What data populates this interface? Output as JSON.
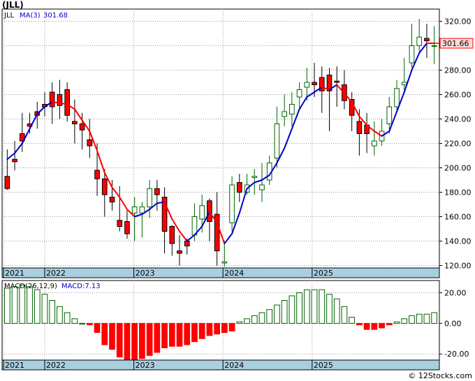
{
  "ticker_label": "(JLL)",
  "footer": "© 12Stocks.com",
  "colors": {
    "up": "#006400",
    "down": "#ff0000",
    "ma_rising": "#0000cc",
    "ma_falling": "#ff0000",
    "axis_band": "#a8cfe0",
    "grid": "#999999"
  },
  "chart_data": [
    {
      "type": "candlestick",
      "title": "",
      "legend": [
        "JLL",
        "MA(3)",
        "301.68"
      ],
      "last_price_label": "301.66",
      "ylim": [
        118,
        330
      ],
      "yticks": [
        120,
        140,
        160,
        180,
        200,
        220,
        240,
        260,
        280,
        "300.00",
        320
      ],
      "ytick_labels": [
        "120.00",
        "140.00",
        "160.00",
        "180.00",
        "200.00",
        "220.00",
        "240.00",
        "260.00",
        "280.00",
        "300.00",
        "320.00"
      ],
      "x_labels": [
        "2021",
        "2022",
        "2023",
        "2024",
        "2025"
      ],
      "x_label_positions": [
        0,
        5.5,
        17.4,
        29.3,
        41.2
      ],
      "candles": [
        [
          193,
          183,
          215,
          182
        ],
        [
          207,
          205,
          222,
          198
        ],
        [
          228,
          222,
          245,
          213
        ],
        [
          236,
          234,
          245,
          228
        ],
        [
          246,
          243,
          254,
          232
        ],
        [
          252,
          250,
          262,
          242
        ],
        [
          262,
          250,
          270,
          236
        ],
        [
          260,
          251,
          272,
          240
        ],
        [
          264,
          243,
          270,
          238
        ],
        [
          238,
          236,
          256,
          220
        ],
        [
          236,
          231,
          245,
          215
        ],
        [
          223,
          218,
          240,
          208
        ],
        [
          198,
          191,
          220,
          177
        ],
        [
          191,
          178,
          199,
          160
        ],
        [
          176,
          172,
          190,
          165
        ],
        [
          157,
          152,
          185,
          148
        ],
        [
          156,
          146,
          165,
          142
        ],
        [
          163,
          168,
          176,
          140
        ],
        [
          163,
          168,
          172,
          143
        ],
        [
          168,
          183,
          190,
          159
        ],
        [
          183,
          178,
          190,
          165
        ],
        [
          176,
          148,
          184,
          130
        ],
        [
          152,
          138,
          153,
          128
        ],
        [
          132,
          130,
          145,
          120
        ],
        [
          140,
          136,
          142,
          129
        ],
        [
          145,
          160,
          171,
          140
        ],
        [
          158,
          169,
          178,
          147
        ],
        [
          173,
          156,
          175,
          140
        ],
        [
          162,
          132,
          180,
          120
        ],
        [
          122,
          123,
          140,
          119
        ],
        [
          155,
          186,
          193,
          148
        ],
        [
          188,
          180,
          195,
          172
        ],
        [
          180,
          186,
          195,
          178
        ],
        [
          192,
          193,
          199,
          178
        ],
        [
          182,
          186,
          204,
          172
        ],
        [
          190,
          204,
          210,
          186
        ],
        [
          208,
          236,
          250,
          200
        ],
        [
          242,
          246,
          260,
          234
        ],
        [
          244,
          252,
          262,
          234
        ],
        [
          258,
          264,
          270,
          248
        ],
        [
          266,
          270,
          282,
          255
        ],
        [
          270,
          268,
          286,
          258
        ],
        [
          274,
          263,
          283,
          245
        ],
        [
          276,
          263,
          282,
          230
        ],
        [
          271,
          270,
          283,
          250
        ],
        [
          268,
          255,
          280,
          248
        ],
        [
          256,
          243,
          262,
          230
        ],
        [
          238,
          228,
          248,
          210
        ],
        [
          235,
          228,
          245,
          212
        ],
        [
          218,
          222,
          238,
          210
        ],
        [
          222,
          230,
          240,
          218
        ],
        [
          236,
          250,
          258,
          228
        ],
        [
          250,
          265,
          272,
          245
        ],
        [
          268,
          270,
          290,
          262
        ],
        [
          286,
          300,
          318,
          282
        ],
        [
          300,
          307,
          322,
          295
        ],
        [
          306,
          304,
          318,
          290
        ],
        [
          300,
          300,
          316,
          285
        ]
      ],
      "ma3": [
        207,
        212,
        220,
        232,
        244,
        250,
        254,
        253,
        252,
        248,
        239,
        230,
        214,
        196,
        184,
        176,
        166,
        160,
        162,
        166,
        171,
        172,
        158,
        148,
        140,
        145,
        152,
        164,
        155,
        138,
        146,
        163,
        183,
        188,
        190,
        194,
        204,
        216,
        232,
        248,
        258,
        262,
        266,
        264,
        268,
        261,
        254,
        242,
        235,
        230,
        226,
        230,
        246,
        262,
        280,
        294,
        302,
        302
      ],
      "ma3_trend": [
        "u",
        "u",
        "u",
        "u",
        "u",
        "u",
        "u",
        "d",
        "d",
        "d",
        "d",
        "d",
        "d",
        "d",
        "d",
        "d",
        "d",
        "d",
        "u",
        "u",
        "u",
        "u",
        "d",
        "d",
        "d",
        "u",
        "u",
        "u",
        "d",
        "d",
        "u",
        "u",
        "u",
        "u",
        "u",
        "u",
        "u",
        "u",
        "u",
        "u",
        "u",
        "u",
        "u",
        "d",
        "u",
        "d",
        "d",
        "d",
        "d",
        "d",
        "d",
        "u",
        "u",
        "u",
        "u",
        "u",
        "u",
        "d"
      ]
    },
    {
      "type": "bar",
      "title": "",
      "legend": [
        "MACD(26,12,9)",
        "MACD:7.13"
      ],
      "ylim": [
        -24,
        28
      ],
      "yticks": [
        20,
        0,
        -20
      ],
      "ytick_labels": [
        "20.00",
        "0.00",
        "-20.00"
      ],
      "x_labels": [
        "2021",
        "2022",
        "2023",
        "2024",
        "2025"
      ],
      "values": [
        23,
        24,
        25,
        24,
        22,
        19,
        15,
        11,
        7,
        3,
        0,
        -1,
        -6,
        -14,
        -17,
        -22,
        -24,
        -24,
        -23,
        -21,
        -19,
        -16,
        -15,
        -15,
        -14,
        -12,
        -10,
        -8,
        -7,
        -6,
        -5,
        1,
        3,
        5,
        7,
        9,
        12,
        15,
        18,
        20,
        22,
        22,
        22,
        19,
        16,
        11,
        4,
        -1,
        -4,
        -4,
        -3,
        -1,
        1,
        3,
        5,
        6,
        6,
        7
      ]
    }
  ]
}
